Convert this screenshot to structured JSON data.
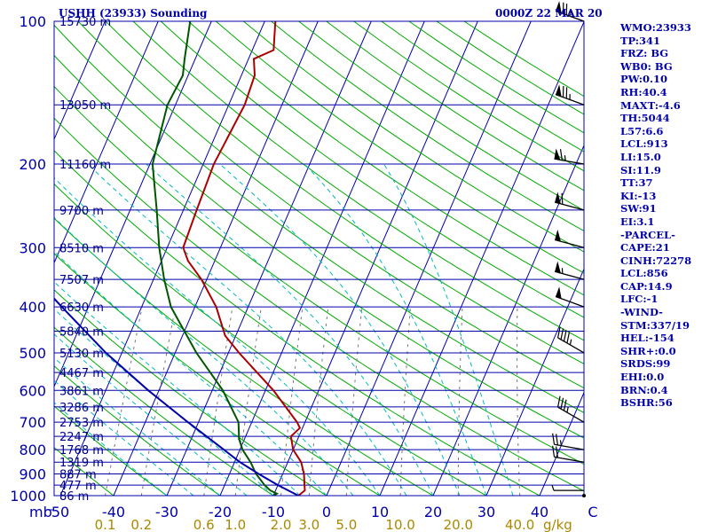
{
  "header": {
    "station_title": "USHH (23933) Sounding",
    "datetime": "0000Z 22 MAR 20"
  },
  "indices": [
    "WMO:23933",
    "TP:341",
    "FRZ: BG",
    "WB0: BG",
    "PW:0.10",
    "RH:40.4",
    "MAXT:-4.6",
    "TH:5044",
    "L57:6.6",
    "LCL:913",
    "LI:15.0",
    "SI:11.9",
    "TT:37",
    "KI:-13",
    "SW:91",
    "EI:3.1",
    "-PARCEL-",
    "CAPE:21",
    "CINH:72278",
    "LCL:856",
    "CAP:14.9",
    "LFC:-1",
    "-WIND-",
    "STM:337/19",
    "HEL:-154",
    "SHR+:0.0",
    "SRDS:99",
    "EHI:0.0",
    "BRN:0.4",
    "BSHR:56"
  ],
  "colors": {
    "axis": "#0000aa",
    "isobar": "#0000aa",
    "isotherm": "#0000aa",
    "dry_adiabat": "#00aa00",
    "moist_adiabat": "#00bbbb",
    "mixing_ratio": "#777777",
    "temperature": "#aa0000",
    "dewpoint": "#005500",
    "parcel": "#0000aa",
    "mixing_ratio_label": "#aa8800",
    "wind": "#000000"
  },
  "chart_data": {
    "type": "skew-t",
    "pressure_axis": {
      "unit": "mb",
      "range_hpa": [
        1000,
        100
      ],
      "tick_labels": [
        100,
        200,
        300,
        400,
        500,
        600,
        700,
        800,
        900,
        1000
      ]
    },
    "temperature_axis": {
      "unit": "C",
      "tick_labels": [
        "50",
        "-40",
        "-30",
        "-20",
        "-10",
        "0",
        "10",
        "20",
        "30",
        "40",
        "C"
      ],
      "tick_values": [
        -50,
        -40,
        -30,
        -20,
        -10,
        0,
        10,
        20,
        30,
        40,
        50
      ]
    },
    "mixing_ratio_axis": {
      "unit": "g/kg",
      "labels": [
        "0.1",
        "0.2",
        "0.6",
        "1.0",
        "2.0",
        "3.0",
        "5.0",
        "10.0",
        "20.0",
        "40.0"
      ]
    },
    "height_labels": [
      {
        "p": 100,
        "label": "15730 m"
      },
      {
        "p": 150,
        "label": "13050 m"
      },
      {
        "p": 200,
        "label": "11160 m"
      },
      {
        "p": 250,
        "label": "9700 m"
      },
      {
        "p": 300,
        "label": "8510 m"
      },
      {
        "p": 350,
        "label": "7507 m"
      },
      {
        "p": 400,
        "label": "6630 m"
      },
      {
        "p": 450,
        "label": "5840 m"
      },
      {
        "p": 500,
        "label": "5130 m"
      },
      {
        "p": 550,
        "label": "4467 m"
      },
      {
        "p": 600,
        "label": "3861 m"
      },
      {
        "p": 650,
        "label": "3286 m"
      },
      {
        "p": 700,
        "label": "2753 m"
      },
      {
        "p": 750,
        "label": "2247 m"
      },
      {
        "p": 800,
        "label": "1768 m"
      },
      {
        "p": 850,
        "label": "1319 m"
      },
      {
        "p": 900,
        "label": "887 m"
      },
      {
        "p": 950,
        "label": "477 m"
      },
      {
        "p": 1000,
        "label": "86 m"
      }
    ],
    "series": [
      {
        "name": "Temperature",
        "points": [
          {
            "p": 1000,
            "t": -5.3
          },
          {
            "p": 975,
            "t": -4.5
          },
          {
            "p": 950,
            "t": -5
          },
          {
            "p": 900,
            "t": -6
          },
          {
            "p": 850,
            "t": -7.5
          },
          {
            "p": 800,
            "t": -10
          },
          {
            "p": 750,
            "t": -11.5
          },
          {
            "p": 720,
            "t": -10.5
          },
          {
            "p": 700,
            "t": -11.5
          },
          {
            "p": 600,
            "t": -18.5
          },
          {
            "p": 500,
            "t": -28
          },
          {
            "p": 460,
            "t": -32
          },
          {
            "p": 400,
            "t": -36
          },
          {
            "p": 350,
            "t": -41
          },
          {
            "p": 320,
            "t": -45
          },
          {
            "p": 300,
            "t": -47
          },
          {
            "p": 250,
            "t": -47.5
          },
          {
            "p": 200,
            "t": -48
          },
          {
            "p": 150,
            "t": -47
          },
          {
            "p": 130,
            "t": -47.5
          },
          {
            "p": 120,
            "t": -49
          },
          {
            "p": 115,
            "t": -46
          },
          {
            "p": 100,
            "t": -48
          }
        ]
      },
      {
        "name": "Dewpoint",
        "points": [
          {
            "p": 1000,
            "t": -10
          },
          {
            "p": 990,
            "t": -9.5
          },
          {
            "p": 975,
            "t": -11
          },
          {
            "p": 950,
            "t": -12.5
          },
          {
            "p": 900,
            "t": -15
          },
          {
            "p": 850,
            "t": -17
          },
          {
            "p": 800,
            "t": -19.5
          },
          {
            "p": 760,
            "t": -21
          },
          {
            "p": 700,
            "t": -22.5
          },
          {
            "p": 600,
            "t": -28
          },
          {
            "p": 500,
            "t": -36
          },
          {
            "p": 400,
            "t": -44.5
          },
          {
            "p": 350,
            "t": -48
          },
          {
            "p": 300,
            "t": -51.5
          },
          {
            "p": 250,
            "t": -55
          },
          {
            "p": 200,
            "t": -59.5
          },
          {
            "p": 150,
            "t": -61.5
          },
          {
            "p": 130,
            "t": -61
          },
          {
            "p": 120,
            "t": -62
          },
          {
            "p": 100,
            "t": -64
          }
        ]
      },
      {
        "name": "Parcel",
        "points": [
          {
            "p": 1000,
            "t": -5.3
          },
          {
            "p": 950,
            "t": -10
          },
          {
            "p": 900,
            "t": -14.5
          },
          {
            "p": 850,
            "t": -19
          },
          {
            "p": 800,
            "t": -23
          },
          {
            "p": 700,
            "t": -32
          },
          {
            "p": 600,
            "t": -42
          },
          {
            "p": 500,
            "t": -53
          },
          {
            "p": 400,
            "t": -65
          },
          {
            "p": 300,
            "t": -80
          },
          {
            "p": 200,
            "t": -100
          },
          {
            "p": 100,
            "t": -135
          }
        ]
      }
    ],
    "wind_barbs": [
      {
        "p": 1000,
        "dir": 200,
        "spd": 0
      },
      {
        "p": 975,
        "dir": 270,
        "spd": 5
      },
      {
        "p": 850,
        "dir": 280,
        "spd": 20
      },
      {
        "p": 800,
        "dir": 280,
        "spd": 25
      },
      {
        "p": 700,
        "dir": 300,
        "spd": 35
      },
      {
        "p": 500,
        "dir": 300,
        "spd": 45
      },
      {
        "p": 400,
        "dir": 290,
        "spd": 50
      },
      {
        "p": 350,
        "dir": 285,
        "spd": 55
      },
      {
        "p": 300,
        "dir": 285,
        "spd": 50
      },
      {
        "p": 250,
        "dir": 285,
        "spd": 60
      },
      {
        "p": 200,
        "dir": 280,
        "spd": 65
      },
      {
        "p": 150,
        "dir": 290,
        "spd": 75
      },
      {
        "p": 100,
        "dir": 290,
        "spd": 75
      }
    ]
  }
}
